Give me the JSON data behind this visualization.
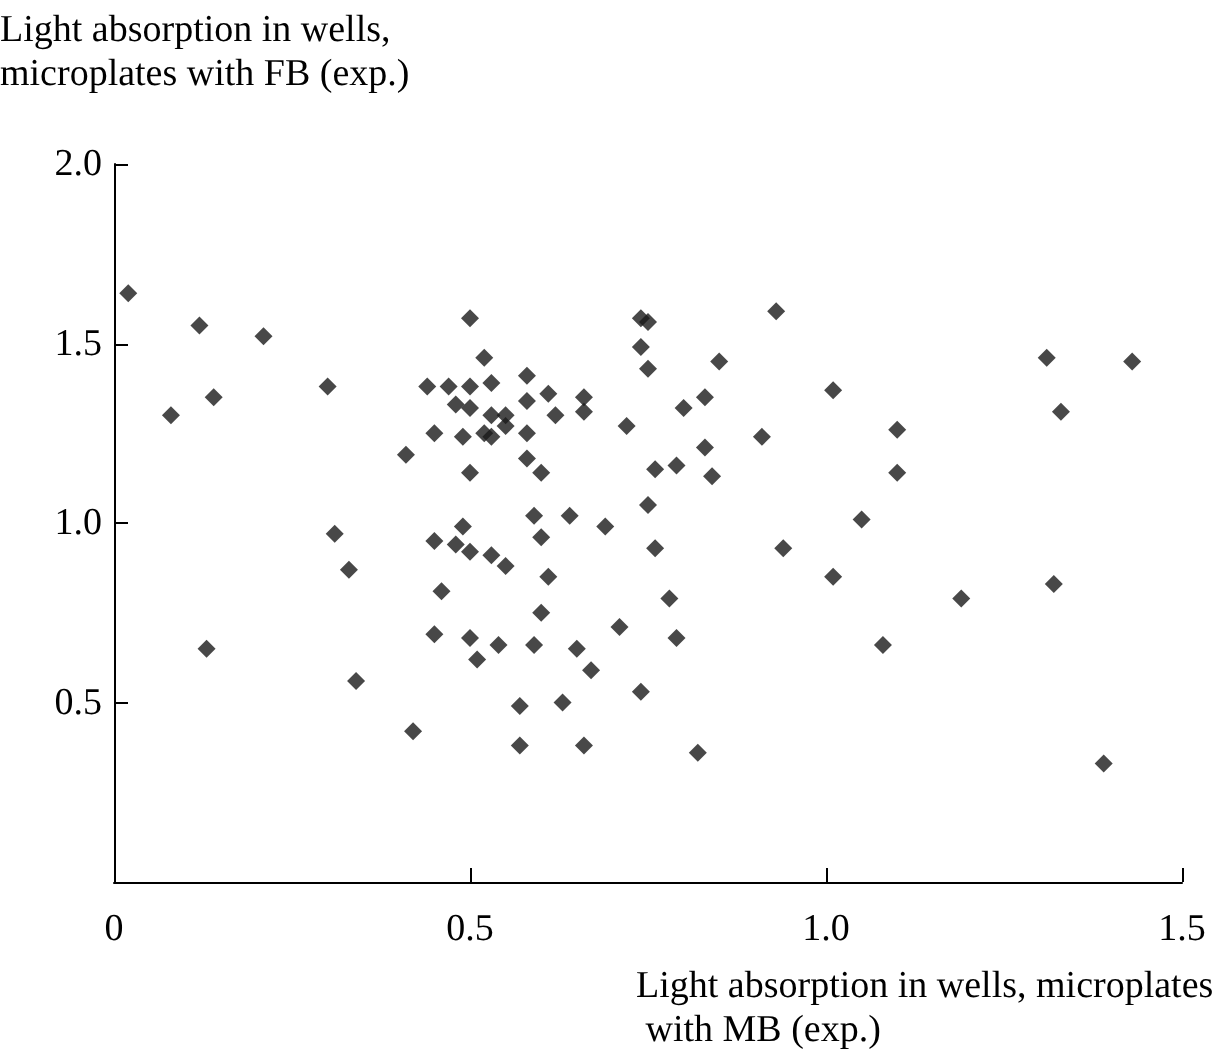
{
  "chart_data": {
    "type": "scatter",
    "xlabel": "Light absorption in wells, microplates with MB (exp.)",
    "ylabel": "Light absorption in wells, microplates with FB (exp.)",
    "x": [
      0.02,
      0.12,
      0.21,
      0.08,
      0.14,
      0.3,
      0.13,
      0.31,
      0.33,
      0.34,
      0.42,
      0.41,
      0.44,
      0.45,
      0.45,
      0.46,
      0.45,
      0.5,
      0.52,
      0.47,
      0.5,
      0.53,
      0.58,
      0.48,
      0.5,
      0.53,
      0.55,
      0.55,
      0.58,
      0.61,
      0.62,
      0.66,
      0.66,
      0.49,
      0.52,
      0.53,
      0.58,
      0.58,
      0.6,
      0.5,
      0.72,
      0.74,
      0.75,
      0.74,
      0.75,
      0.85,
      0.83,
      0.8,
      0.83,
      0.84,
      0.91,
      0.93,
      0.76,
      0.79,
      0.75,
      0.49,
      0.48,
      0.5,
      0.53,
      0.55,
      0.59,
      0.6,
      0.64,
      0.69,
      0.76,
      0.94,
      1.01,
      0.61,
      0.78,
      0.6,
      0.5,
      0.51,
      0.54,
      0.59,
      0.65,
      0.67,
      0.71,
      0.79,
      0.57,
      0.63,
      0.74,
      0.57,
      0.66,
      0.82,
      1.01,
      1.1,
      1.1,
      1.05,
      1.19,
      1.08,
      1.31,
      1.43,
      1.33,
      1.32,
      1.39
    ],
    "values": [
      1.64,
      1.55,
      1.52,
      1.3,
      1.35,
      1.38,
      0.65,
      0.97,
      0.87,
      0.56,
      0.42,
      1.19,
      1.38,
      1.25,
      0.95,
      0.81,
      0.69,
      1.57,
      1.46,
      1.38,
      1.38,
      1.39,
      1.41,
      1.33,
      1.32,
      1.3,
      1.3,
      1.27,
      1.34,
      1.36,
      1.3,
      1.35,
      1.31,
      1.24,
      1.25,
      1.24,
      1.25,
      1.18,
      1.14,
      1.14,
      1.27,
      1.57,
      1.56,
      1.49,
      1.43,
      1.45,
      1.35,
      1.32,
      1.21,
      1.13,
      1.24,
      1.59,
      1.15,
      1.16,
      1.05,
      0.99,
      0.94,
      0.92,
      0.91,
      0.88,
      1.02,
      0.96,
      1.02,
      0.99,
      0.93,
      0.93,
      0.85,
      0.85,
      0.79,
      0.75,
      0.68,
      0.62,
      0.66,
      0.66,
      0.65,
      0.59,
      0.71,
      0.68,
      0.49,
      0.5,
      0.53,
      0.38,
      0.38,
      0.36,
      1.37,
      1.26,
      1.14,
      1.01,
      0.79,
      0.66,
      1.46,
      1.45,
      1.31,
      0.83,
      0.33
    ],
    "color": "#1a1a1a",
    "marker": "diamond",
    "grid": false,
    "xlim": [
      0,
      1.5
    ],
    "xticks": [
      0,
      {
        "value": 0.5,
        "label": "0.5"
      },
      {
        "value": 1,
        "label": "1.0"
      },
      {
        "value": 1.5,
        "label": "1.5"
      }
    ],
    "ylim": [
      0,
      2
    ],
    "yticks": [
      {
        "value": 0.5,
        "label": "0.5"
      },
      {
        "value": 1,
        "label": "1.0"
      },
      {
        "value": 1.5,
        "label": "1.5"
      },
      {
        "value": 2,
        "label": "2.0"
      }
    ]
  }
}
